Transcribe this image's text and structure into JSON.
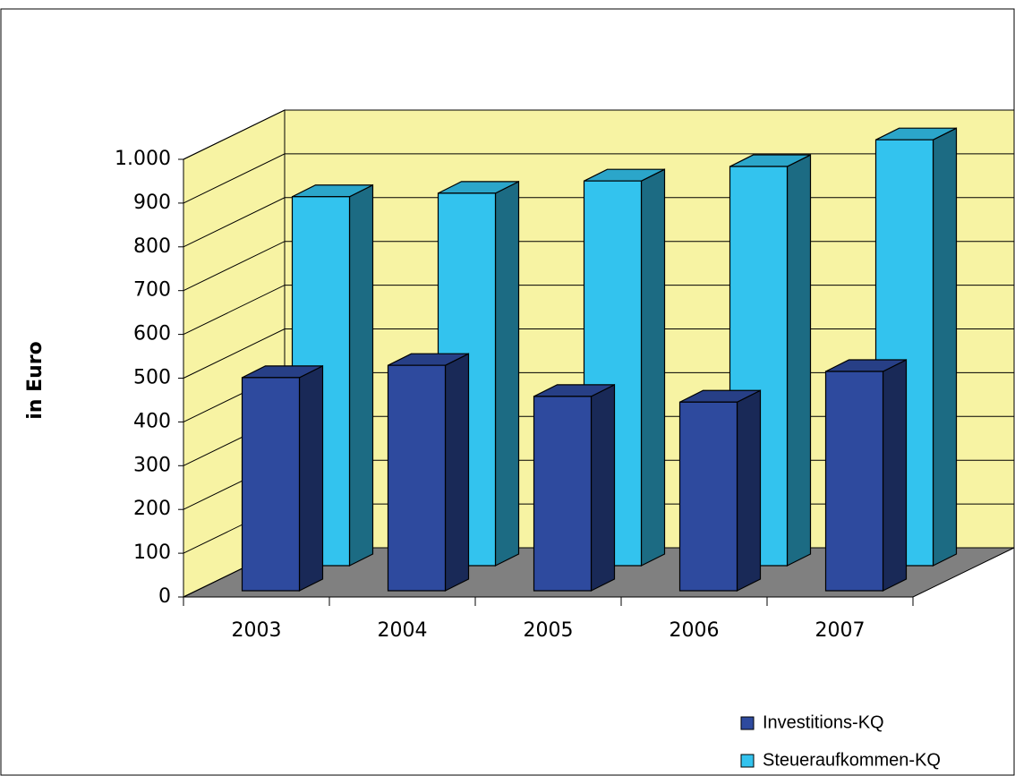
{
  "chart_data": {
    "type": "bar3d",
    "y_label": "in Euro",
    "categories": [
      "2003",
      "2004",
      "2005",
      "2006",
      "2007"
    ],
    "series": [
      {
        "name": "Investitions-KQ",
        "color": "#2e4a9e",
        "values": [
          487,
          515,
          444,
          431,
          501
        ]
      },
      {
        "name": "Steueraufkommen-KQ",
        "color": "#33c3ee",
        "values": [
          843,
          851,
          879,
          912,
          973
        ]
      }
    ],
    "ylim": [
      0,
      1000
    ],
    "yticks": [
      0,
      100,
      200,
      300,
      400,
      500,
      600,
      700,
      800,
      900,
      {
        "value": 1000,
        "label": "1.000"
      }
    ],
    "grid": true
  }
}
